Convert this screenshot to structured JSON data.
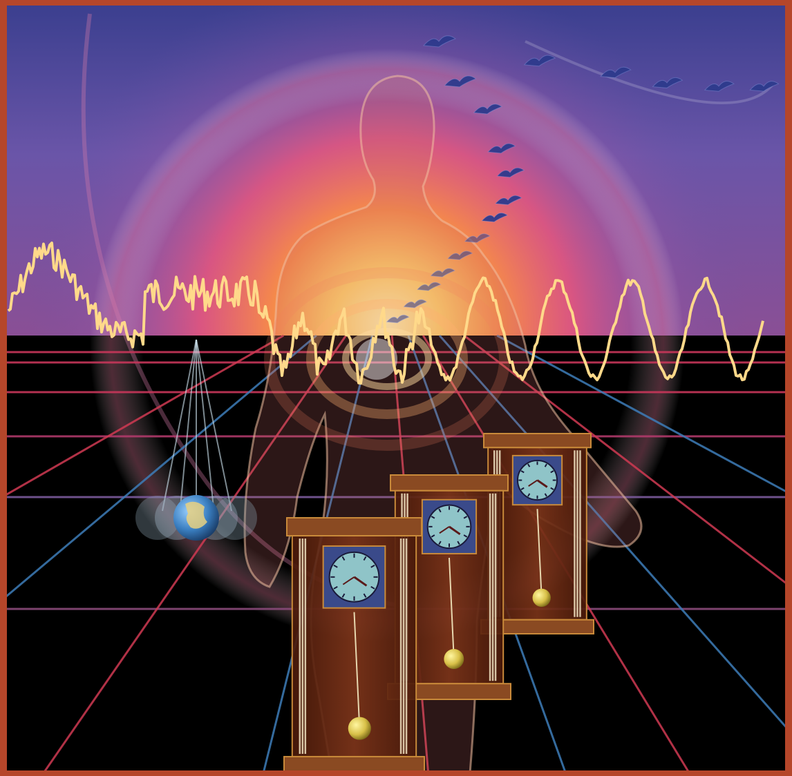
{
  "scene": {
    "elements": [
      "sky-gradient",
      "perspective-grid",
      "waveform",
      "human-silhouette",
      "migrating-birds",
      "globe-pendulum",
      "grandfather-clocks"
    ],
    "palette": {
      "sky_top": "#3b3f8f",
      "sky_mid": "#7a57a8",
      "glow_pink": "#e8567e",
      "glow_orange": "#f6a24a",
      "glow_yellow": "#ffe38a",
      "ground": "#000000",
      "grid_red": "#d03a52",
      "grid_blue": "#3d7db8",
      "waveform": "#ffd98a",
      "frame": "#b5462a",
      "bird": "#2d3a8c",
      "clock_wood": "#6a2a14",
      "clock_trim": "#c98a3a",
      "clock_face": "#8fc4c8",
      "pendulum_gold": "#d8c048",
      "globe_ocean": "#3a7ec0",
      "globe_land": "#e8d080"
    },
    "clocks": [
      {
        "name": "front-clock"
      },
      {
        "name": "middle-clock"
      },
      {
        "name": "back-clock"
      }
    ],
    "bird_count": 18
  }
}
